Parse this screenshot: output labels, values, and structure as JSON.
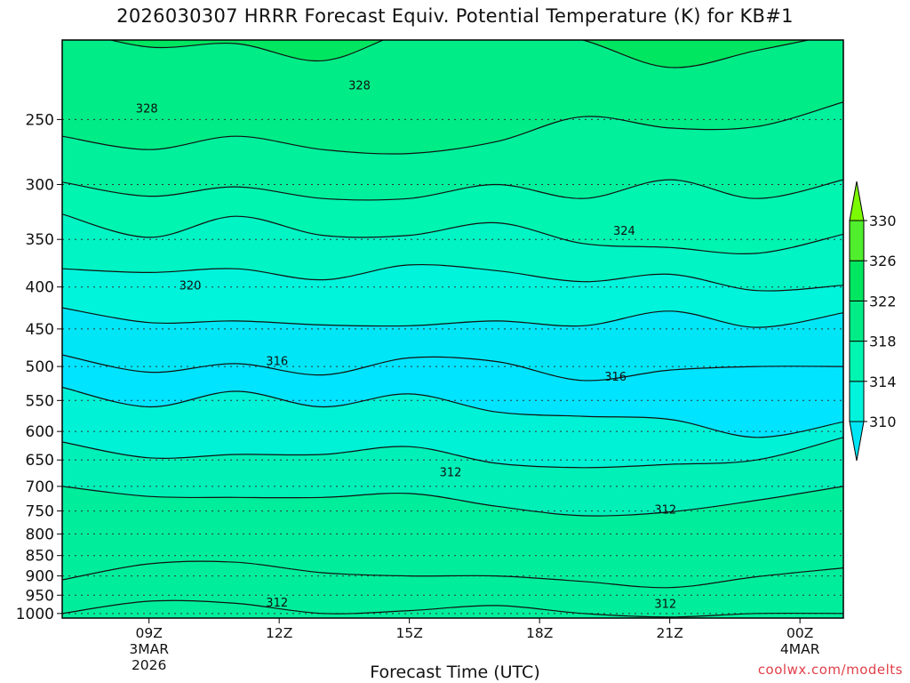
{
  "chart_data": {
    "type": "contour",
    "title": "2026030307 HRRR Forecast Equiv. Potential Temperature (K) for KB#1",
    "xlabel": "Forecast Time (UTC)",
    "credit": "coolwx.com/modelts",
    "x_ticks": [
      {
        "t": 9,
        "lines": [
          "09Z",
          "3MAR",
          "2026"
        ]
      },
      {
        "t": 12,
        "lines": [
          "12Z"
        ]
      },
      {
        "t": 15,
        "lines": [
          "15Z"
        ]
      },
      {
        "t": 18,
        "lines": [
          "18Z"
        ]
      },
      {
        "t": 21,
        "lines": [
          "21Z"
        ]
      },
      {
        "t": 24,
        "lines": [
          "00Z",
          "4MAR"
        ]
      }
    ],
    "x_range_hours": [
      7.0,
      25.0
    ],
    "y_ticks": [
      250,
      300,
      350,
      400,
      450,
      500,
      550,
      600,
      650,
      700,
      750,
      800,
      850,
      900,
      950,
      1000
    ],
    "y_range_mb": [
      200,
      1013
    ],
    "y_scale": "log",
    "grid": "dotted",
    "colorbar": {
      "levels": [
        310,
        314,
        318,
        322,
        326,
        330
      ],
      "colors": [
        "#00e6f6",
        "#00f4dc",
        "#00f5b0",
        "#00ec86",
        "#00e660",
        "#50ee2c",
        "#7cfb00"
      ]
    },
    "contour_labels": [
      {
        "text": "328",
        "t": 8.95,
        "p": 242
      },
      {
        "text": "328",
        "t": 13.85,
        "p": 227
      },
      {
        "text": "324",
        "t": 19.95,
        "p": 341
      },
      {
        "text": "320",
        "t": 9.95,
        "p": 398
      },
      {
        "text": "316",
        "t": 11.95,
        "p": 492
      },
      {
        "text": "316",
        "t": 19.75,
        "p": 514
      },
      {
        "text": "312",
        "t": 15.95,
        "p": 672
      },
      {
        "text": "312",
        "t": 20.9,
        "p": 746
      },
      {
        "text": "312",
        "t": 11.95,
        "p": 969
      },
      {
        "text": "312",
        "t": 20.9,
        "p": 972
      }
    ]
  }
}
